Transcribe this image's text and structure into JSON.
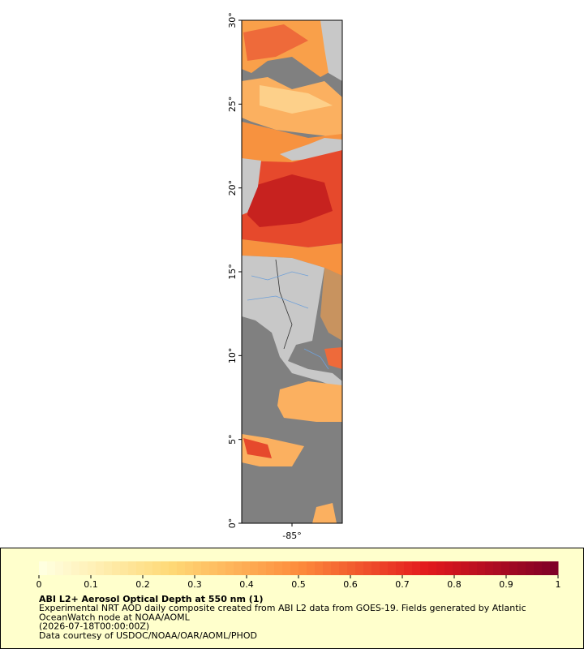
{
  "map": {
    "xlim": [
      -88,
      -82
    ],
    "ylim": [
      0,
      30
    ],
    "yticks": [
      {
        "value": 0,
        "label": "0°"
      },
      {
        "value": 5,
        "label": "5°"
      },
      {
        "value": 10,
        "label": "10°"
      },
      {
        "value": 15,
        "label": "15°"
      },
      {
        "value": 20,
        "label": "20°"
      },
      {
        "value": 25,
        "label": "25°"
      },
      {
        "value": 30,
        "label": "30°"
      }
    ],
    "xticks": [
      {
        "value": -85,
        "label": "-85°"
      }
    ]
  },
  "legend": {
    "title": "ABI L2+ Aerosol Optical Depth at 550 nm (1)",
    "lines": [
      "Experimental NRT AOD daily composite created from ABI L2 data from GOES-19. Fields generated by Atlantic",
      "OceanWatch node at NOAA/AOML",
      "(2026-07-18T00:00:00Z)",
      "Data courtesy of USDOC/NOAA/OAR/AOML/PHOD"
    ],
    "colorbar": {
      "lim": [
        0,
        1
      ],
      "ticks": [
        0,
        0.1,
        0.2,
        0.3,
        0.4,
        0.5,
        0.6,
        0.7,
        0.8,
        0.9,
        1
      ]
    }
  }
}
